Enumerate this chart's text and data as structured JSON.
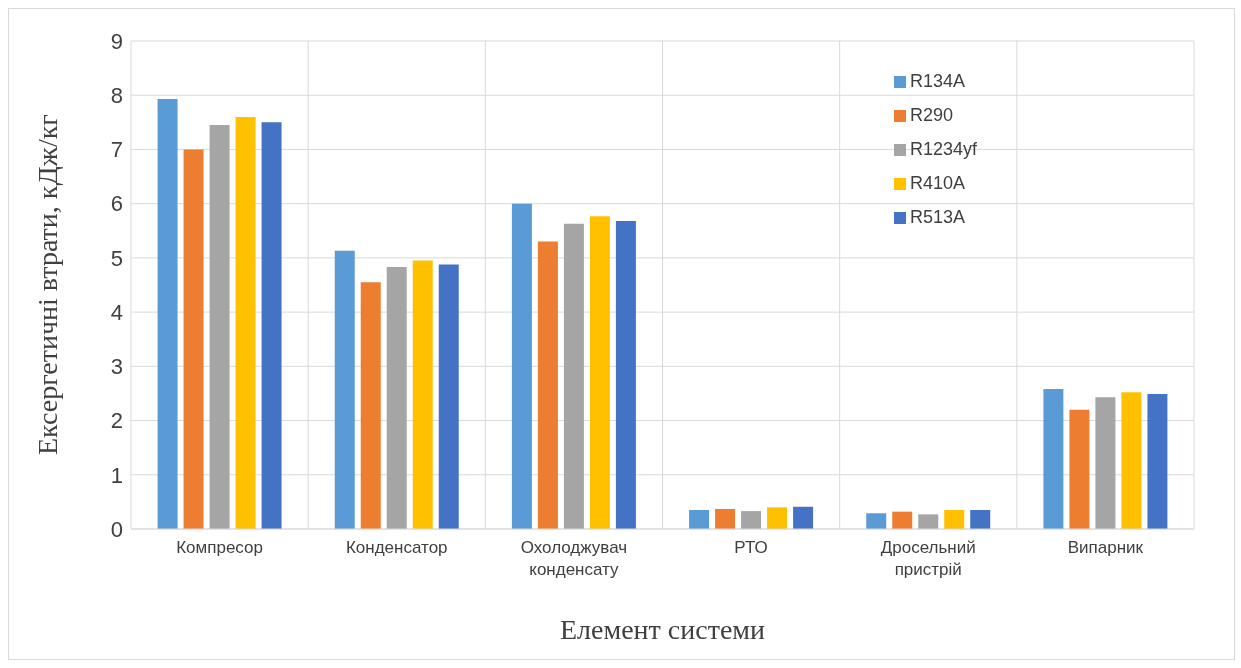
{
  "chart_data": {
    "type": "bar",
    "xlabel": "Елемент системи",
    "ylabel": "Ексергетичні втрати, кДж/кг",
    "categories": [
      "Компресор",
      "Конденсатор",
      "Охолоджувач конденсату",
      "РТО",
      "Дросельний пристрій",
      "Випарник"
    ],
    "series": [
      {
        "name": "R134A",
        "color": "#5b9bd5",
        "values": [
          7.93,
          5.13,
          6.0,
          0.35,
          0.29,
          2.58
        ]
      },
      {
        "name": "R290",
        "color": "#ed7d31",
        "values": [
          7.0,
          4.55,
          5.3,
          0.37,
          0.32,
          2.2
        ]
      },
      {
        "name": "R1234yf",
        "color": "#a5a5a5",
        "values": [
          7.45,
          4.83,
          5.63,
          0.33,
          0.27,
          2.43
        ]
      },
      {
        "name": "R410A",
        "color": "#ffc000",
        "values": [
          7.6,
          4.95,
          5.77,
          0.4,
          0.35,
          2.52
        ]
      },
      {
        "name": "R513A",
        "color": "#4472c4",
        "values": [
          7.5,
          4.88,
          5.68,
          0.41,
          0.35,
          2.49
        ]
      }
    ],
    "ylim": [
      0,
      9
    ],
    "yticks": [
      0,
      1,
      2,
      3,
      4,
      5,
      6,
      7,
      8,
      9
    ],
    "grid": true,
    "legend": "top right"
  }
}
